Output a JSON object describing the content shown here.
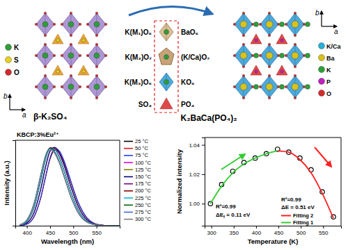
{
  "diagram": {
    "left": {
      "title": "β-K₂SO₄",
      "axes": [
        "b",
        "a"
      ],
      "legend": [
        "K",
        "S",
        "O"
      ]
    },
    "right": {
      "title": "K₂BaCa(PO₄)₂",
      "axes": [
        "b",
        "a"
      ],
      "legend": [
        "K/Ca",
        "Ba",
        "K",
        "P",
        "O"
      ]
    },
    "mapping": [
      {
        "from": "K(M₁)O₆",
        "to": "BaO₆"
      },
      {
        "from": "K(M₂)O₇",
        "to": "(K/Ca)O₇"
      },
      {
        "from": "K(M₃)O₆",
        "to": "KO₆"
      },
      {
        "from": "SO₄",
        "to": "PO₄"
      }
    ]
  },
  "chart_data": [
    {
      "type": "line",
      "annotation": "KBCP:3%Eu²⁺",
      "x_label": "Wavelength (nm)",
      "y_label": "Intensity (a.u.)",
      "x": [
        385,
        400,
        415,
        430,
        440,
        450,
        460,
        470,
        480,
        495,
        510,
        530,
        555,
        580,
        600
      ],
      "xlim": [
        375,
        600
      ],
      "xticks": [
        400,
        450,
        500,
        550
      ],
      "ylim": [
        0,
        1.05
      ],
      "tick_labels": "x",
      "legend": "right",
      "series": [
        {
          "name": "25 °C",
          "color": "#000000",
          "values": [
            0.003,
            0.02,
            0.104,
            0.344,
            0.59,
            0.82,
            0.929,
            0.894,
            0.779,
            0.529,
            0.288,
            0.091,
            0.012,
            0.001,
            0
          ]
        },
        {
          "name": "50 °C",
          "color": "#e41a1c",
          "values": [
            0.003,
            0.02,
            0.106,
            0.35,
            0.599,
            0.833,
            0.944,
            0.908,
            0.792,
            0.538,
            0.293,
            0.093,
            0.012,
            0.001,
            0
          ]
        },
        {
          "name": "75 °C",
          "color": "#1f3fff",
          "values": [
            0.003,
            0.02,
            0.107,
            0.353,
            0.605,
            0.842,
            0.954,
            0.918,
            0.8,
            0.543,
            0.296,
            0.094,
            0.012,
            0.001,
            0
          ]
        },
        {
          "name": "100 °C",
          "color": "#e600e6",
          "values": [
            0.005,
            0.034,
            0.156,
            0.452,
            0.712,
            0.913,
            0.956,
            0.884,
            0.741,
            0.474,
            0.244,
            0.071,
            0.009,
            0.001,
            0
          ]
        },
        {
          "name": "125 °C",
          "color": "#808000",
          "values": [
            0.005,
            0.034,
            0.156,
            0.455,
            0.716,
            0.918,
            0.961,
            0.889,
            0.745,
            0.477,
            0.245,
            0.071,
            0.009,
            0.001,
            0
          ]
        },
        {
          "name": "150 °C",
          "color": "#000080",
          "values": [
            0.005,
            0.034,
            0.157,
            0.456,
            0.718,
            0.921,
            0.964,
            0.892,
            0.747,
            0.478,
            0.246,
            0.072,
            0.009,
            0.001,
            0
          ]
        },
        {
          "name": "175 °C",
          "color": "#800080",
          "values": [
            0.008,
            0.053,
            0.218,
            0.562,
            0.815,
            0.961,
            0.947,
            0.842,
            0.679,
            0.41,
            0.199,
            0.053,
            0.006,
            0,
            0
          ]
        },
        {
          "name": "200 °C",
          "color": "#8b0000",
          "values": [
            0.008,
            0.053,
            0.217,
            0.559,
            0.811,
            0.956,
            0.942,
            0.838,
            0.676,
            0.408,
            0.198,
            0.053,
            0.006,
            0,
            0
          ]
        },
        {
          "name": "225 °C",
          "color": "#00bcd4",
          "values": [
            0.008,
            0.053,
            0.216,
            0.556,
            0.806,
            0.951,
            0.937,
            0.833,
            0.672,
            0.406,
            0.197,
            0.053,
            0.006,
            0,
            0
          ]
        },
        {
          "name": "250 °C",
          "color": "#006400",
          "values": [
            0.012,
            0.073,
            0.269,
            0.632,
            0.861,
            0.955,
            0.909,
            0.786,
            0.615,
            0.355,
            0.164,
            0.042,
            0.005,
            0,
            0
          ]
        },
        {
          "name": "275 °C",
          "color": "#4169e1",
          "values": [
            0.012,
            0.072,
            0.266,
            0.626,
            0.852,
            0.945,
            0.9,
            0.778,
            0.609,
            0.352,
            0.163,
            0.042,
            0.005,
            0,
            0
          ]
        },
        {
          "name": "300 °C",
          "color": "#808080",
          "values": [
            0.012,
            0.071,
            0.262,
            0.616,
            0.839,
            0.93,
            0.885,
            0.765,
            0.599,
            0.346,
            0.16,
            0.041,
            0.005,
            0,
            0
          ]
        }
      ]
    },
    {
      "type": "scatter",
      "x_label": "Temperature (K)",
      "y_label": "Normalized intensity",
      "xlim": [
        285,
        590
      ],
      "xticks": [
        300,
        350,
        400,
        450,
        500,
        550
      ],
      "ylim": [
        0.985,
        1.045
      ],
      "yticks": [
        {
          "value": 1.0,
          "label": "1.00"
        },
        {
          "value": 1.02,
          "label": "1.02"
        },
        {
          "value": 1.04,
          "label": "1.04"
        }
      ],
      "legend": "lower right",
      "series": [
        {
          "type": "scatter",
          "marker": "circle",
          "color": "#000000",
          "x": [
            298,
            323,
            348,
            373,
            398,
            423,
            448,
            473,
            498,
            523,
            548,
            573
          ],
          "values": [
            1.0,
            1.013,
            1.022,
            1.028,
            1.031,
            1.034,
            1.037,
            1.035,
            1.031,
            1.023,
            1.008,
            0.991
          ]
        },
        {
          "name": "Fitting 2",
          "type": "line",
          "color": "#ff2020",
          "x": [
            448,
            473,
            498,
            523,
            548,
            573
          ],
          "values": [
            1.036,
            1.035,
            1.03,
            1.021,
            1.007,
            0.99
          ]
        },
        {
          "name": "Fitting 1",
          "type": "line",
          "color": "#33cc33",
          "x": [
            298,
            323,
            348,
            373,
            398,
            423,
            448
          ],
          "values": [
            1.0,
            1.012,
            1.021,
            1.027,
            1.031,
            1.034,
            1.036
          ]
        }
      ],
      "annotations": [
        {
          "text": "R²=0.99"
        },
        {
          "text": "ΔE",
          "subscript": "f",
          "suffix": " = 0.11 eV"
        },
        {
          "text": "R²=0.99"
        },
        {
          "text": "ΔE = 0.51 eV"
        }
      ]
    }
  ]
}
